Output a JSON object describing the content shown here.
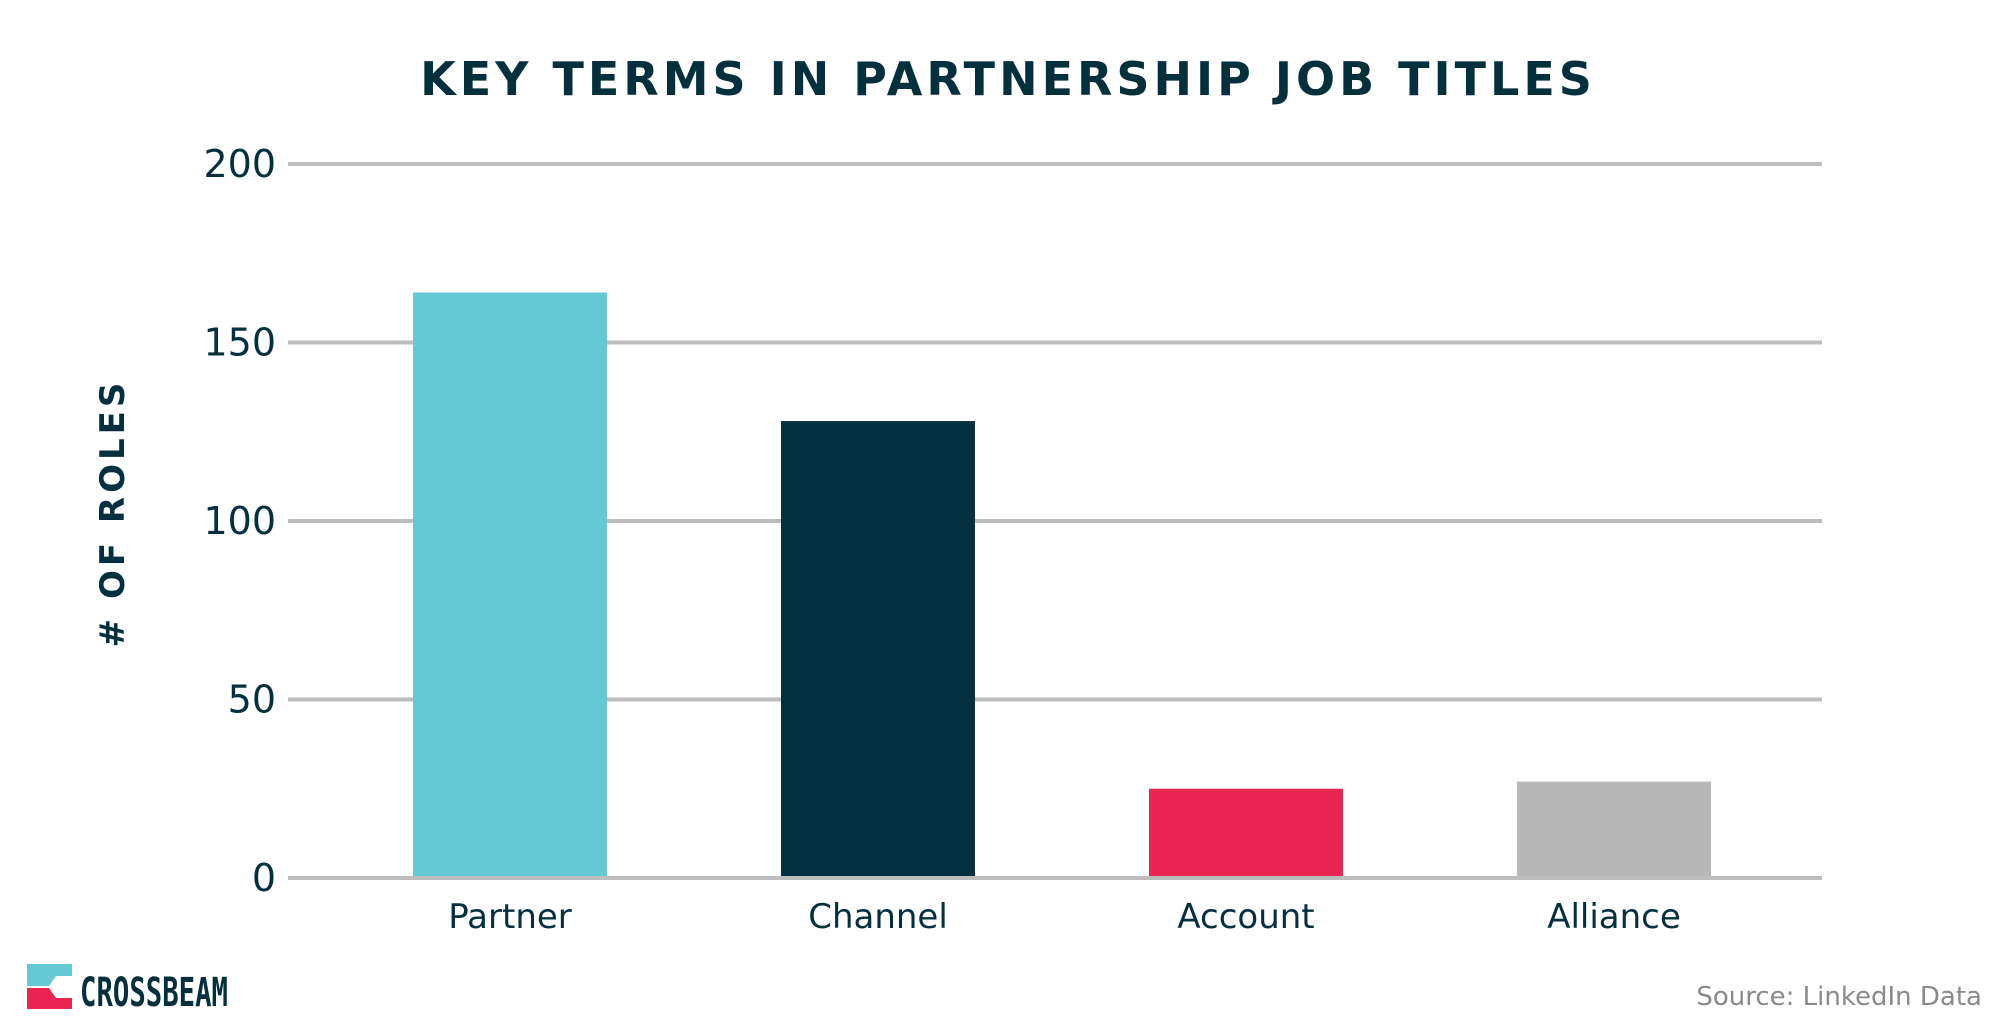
{
  "chart_data": {
    "type": "bar",
    "title": "KEY TERMS IN PARTNERSHIP JOB TITLES",
    "ylabel": "# OF ROLES",
    "xlabel": "",
    "categories": [
      "Partner",
      "Channel",
      "Account",
      "Alliance"
    ],
    "values": [
      164,
      128,
      25,
      27
    ],
    "colors": [
      "#64c8d5",
      "#04313f",
      "#ea2552",
      "#b8b8b8"
    ],
    "ylim": [
      0,
      200
    ],
    "yticks": [
      "0",
      "50",
      "100",
      "150",
      "200"
    ],
    "grid": true,
    "legend": "none"
  },
  "brand": {
    "logo_text": "CROSSBEAM",
    "logo_colors": [
      "#64c8d5",
      "#ea2552"
    ]
  },
  "source": {
    "text": "Source: LinkedIn Data"
  }
}
